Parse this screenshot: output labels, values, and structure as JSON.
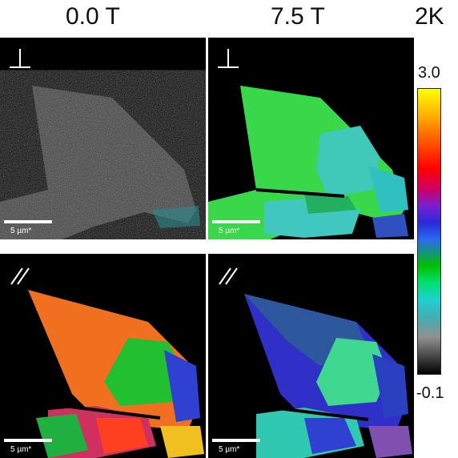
{
  "headers": {
    "left": "0.0 T",
    "right": "7.5 T",
    "unit": "2K"
  },
  "panels": [
    {
      "id": "p00",
      "field": "0.0 T",
      "orientation": "perpendicular",
      "scale_label": "5 µm*"
    },
    {
      "id": "p75",
      "field": "7.5 T",
      "orientation": "perpendicular",
      "scale_label": "5 µm*"
    },
    {
      "id": "q00",
      "field": "0.0 T",
      "orientation": "parallel",
      "scale_label": "5 µm*"
    },
    {
      "id": "q75",
      "field": "7.5 T",
      "orientation": "parallel",
      "scale_label": "5 µm*"
    }
  ],
  "colorbar": {
    "max_label": "3.0",
    "min_label": "-0.1",
    "colors": [
      "#ffff00",
      "#ff5a00",
      "#ff0000",
      "#7a1fd0",
      "#2a2ad8",
      "#00c000",
      "#20d0d0",
      "#909090",
      "#000000"
    ]
  },
  "palette": {
    "background": "#ffffff",
    "panel_bg": "#000000",
    "text": "#111111"
  }
}
